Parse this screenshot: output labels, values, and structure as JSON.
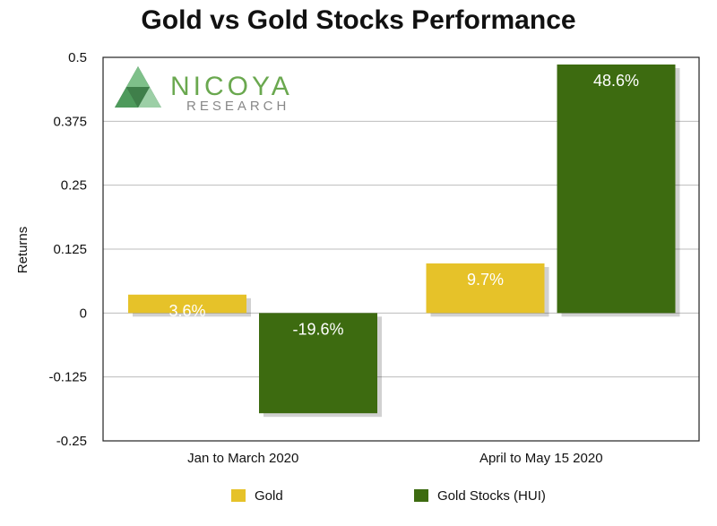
{
  "chart_data": {
    "type": "bar",
    "title": "Gold vs Gold Stocks Performance",
    "xlabel": "",
    "ylabel": "Returns",
    "ylim": [
      -0.25,
      0.5
    ],
    "yticks": [
      0.5,
      0.375,
      0.25,
      0.125,
      0,
      -0.125,
      -0.25
    ],
    "ytick_labels": [
      "0.5",
      "0.375",
      "0.25",
      "0.125",
      "0",
      "-0.125",
      "-0.25"
    ],
    "categories": [
      "Jan to March 2020",
      "April to May 15 2020"
    ],
    "series": [
      {
        "name": "Gold",
        "color": "#e6c229",
        "values": [
          0.036,
          0.097
        ],
        "labels": [
          "3.6%",
          "9.7%"
        ]
      },
      {
        "name": "Gold Stocks (HUI)",
        "color": "#3d6b10",
        "values": [
          -0.196,
          0.486
        ],
        "labels": [
          "-19.6%",
          "48.6%"
        ]
      }
    ],
    "grid": true,
    "legend_position": "bottom"
  },
  "logo": {
    "name": "NICOYA",
    "sub": "RESEARCH",
    "color_main": "#6aa84f",
    "color_sub": "#888888"
  }
}
